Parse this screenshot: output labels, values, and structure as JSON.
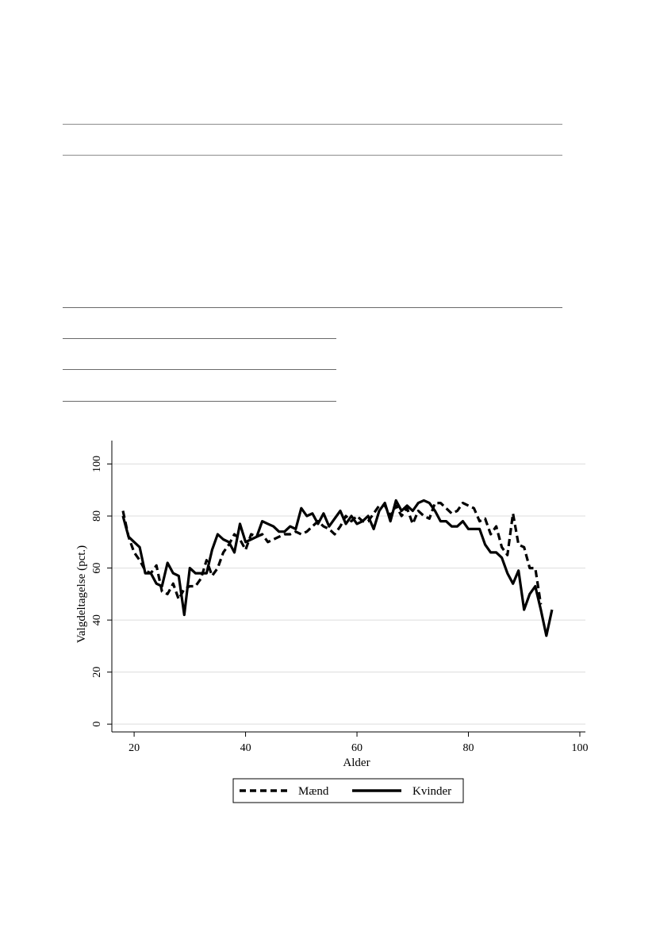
{
  "chart_data": {
    "type": "line",
    "title": "",
    "xlabel": "Alder",
    "ylabel": "Valgdeltagelse (pct.)",
    "xlim": [
      16,
      101
    ],
    "ylim": [
      -3,
      109
    ],
    "x_ticks": [
      20,
      40,
      60,
      80,
      100
    ],
    "y_ticks": [
      0,
      20,
      40,
      60,
      80,
      100
    ],
    "grid": "horizontal",
    "legend_position": "bottom",
    "colors": {
      "line": "#000000",
      "grid": "#dddddd"
    },
    "series": [
      {
        "name": "Mænd",
        "style": "dashed",
        "x": [
          18,
          19,
          20,
          21,
          22,
          23,
          24,
          25,
          26,
          27,
          28,
          29,
          30,
          31,
          32,
          33,
          34,
          35,
          36,
          37,
          38,
          39,
          40,
          41,
          42,
          43,
          44,
          45,
          46,
          47,
          48,
          49,
          50,
          51,
          52,
          53,
          54,
          55,
          56,
          57,
          58,
          59,
          60,
          61,
          62,
          63,
          64,
          65,
          66,
          67,
          68,
          69,
          70,
          71,
          72,
          73,
          74,
          75,
          76,
          77,
          78,
          79,
          80,
          81,
          82,
          83,
          84,
          85,
          86,
          87,
          88,
          89,
          90,
          91,
          92,
          93
        ],
        "y": [
          82,
          72,
          66,
          63,
          59,
          58,
          61,
          51,
          50,
          54,
          48,
          52,
          53,
          53,
          56,
          63,
          57,
          60,
          66,
          69,
          73,
          71,
          67,
          73,
          72,
          73,
          70,
          71,
          72,
          73,
          73,
          74,
          73,
          74,
          76,
          78,
          76,
          75,
          73,
          76,
          80,
          78,
          80,
          78,
          78,
          81,
          84,
          84,
          80,
          84,
          80,
          83,
          77,
          82,
          80,
          79,
          85,
          85,
          83,
          81,
          82,
          85,
          84,
          83,
          78,
          79,
          73,
          76,
          68,
          65,
          81,
          69,
          68,
          60,
          60,
          46
        ],
        "values": [
          82,
          72,
          66,
          63,
          59,
          58,
          61,
          51,
          50,
          54,
          48,
          52,
          53,
          53,
          56,
          63,
          57,
          60,
          66,
          69,
          73,
          71,
          67,
          73,
          72,
          73,
          70,
          71,
          72,
          73,
          73,
          74,
          73,
          74,
          76,
          78,
          76,
          75,
          73,
          76,
          80,
          78,
          80,
          78,
          78,
          81,
          84,
          84,
          80,
          84,
          80,
          83,
          77,
          82,
          80,
          79,
          85,
          85,
          83,
          81,
          82,
          85,
          84,
          83,
          78,
          79,
          73,
          76,
          68,
          65,
          81,
          69,
          68,
          60,
          60,
          46
        ]
      },
      {
        "name": "Kvinder",
        "style": "solid",
        "x": [
          18,
          19,
          20,
          21,
          22,
          23,
          24,
          25,
          26,
          27,
          28,
          29,
          30,
          31,
          32,
          33,
          34,
          35,
          36,
          37,
          38,
          39,
          40,
          41,
          42,
          43,
          44,
          45,
          46,
          47,
          48,
          49,
          50,
          51,
          52,
          53,
          54,
          55,
          56,
          57,
          58,
          59,
          60,
          61,
          62,
          63,
          64,
          65,
          66,
          67,
          68,
          69,
          70,
          71,
          72,
          73,
          74,
          75,
          76,
          77,
          78,
          79,
          80,
          81,
          82,
          83,
          84,
          85,
          86,
          87,
          88,
          89,
          90,
          91,
          92,
          93,
          94,
          95
        ],
        "y": [
          80,
          72,
          70,
          68,
          58,
          58,
          54,
          53,
          62,
          58,
          57,
          42,
          60,
          58,
          58,
          58,
          67,
          73,
          71,
          70,
          66,
          77,
          70,
          71,
          72,
          78,
          77,
          76,
          74,
          74,
          76,
          75,
          83,
          80,
          81,
          77,
          81,
          76,
          79,
          82,
          77,
          80,
          77,
          78,
          80,
          75,
          82,
          85,
          78,
          86,
          82,
          84,
          82,
          85,
          86,
          85,
          82,
          78,
          78,
          76,
          76,
          78,
          75,
          75,
          75,
          69,
          66,
          66,
          64,
          58,
          54,
          59,
          44,
          50,
          53,
          44,
          34,
          44
        ],
        "values": [
          80,
          72,
          70,
          68,
          58,
          58,
          54,
          53,
          62,
          58,
          57,
          42,
          60,
          58,
          58,
          58,
          67,
          73,
          71,
          70,
          66,
          77,
          70,
          71,
          72,
          78,
          77,
          76,
          74,
          74,
          76,
          75,
          83,
          80,
          81,
          77,
          81,
          76,
          79,
          82,
          77,
          80,
          77,
          78,
          80,
          75,
          82,
          85,
          78,
          86,
          82,
          84,
          82,
          85,
          86,
          85,
          82,
          78,
          78,
          76,
          76,
          78,
          75,
          75,
          75,
          69,
          66,
          66,
          64,
          58,
          54,
          59,
          44,
          50,
          53,
          44,
          34,
          44
        ]
      }
    ]
  }
}
